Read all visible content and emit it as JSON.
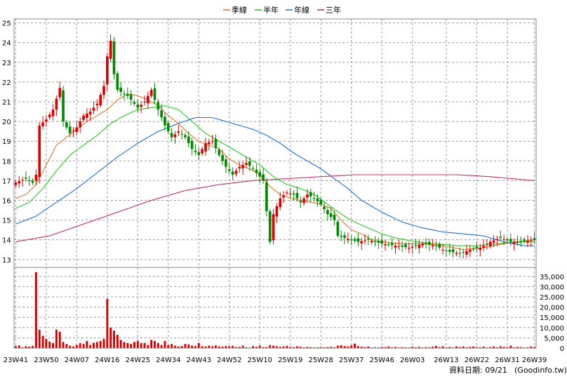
{
  "chart_data": {
    "type": "candlestick_with_volume",
    "title": "",
    "legend": [
      {
        "name": "季線",
        "color": "#e8742a"
      },
      {
        "name": "半年",
        "color": "#22cc22"
      },
      {
        "name": "年線",
        "color": "#1f6fd1"
      },
      {
        "name": "三年",
        "color": "#c0306a"
      }
    ],
    "price_axis": {
      "min": 12.6,
      "max": 25.2,
      "ticks": [
        13,
        14,
        15,
        16,
        17,
        18,
        19,
        20,
        21,
        22,
        23,
        24,
        25
      ]
    },
    "volume_axis": {
      "min": 0,
      "max": 38000,
      "ticks": [
        0,
        5000,
        10000,
        15000,
        20000,
        25000,
        30000,
        35000
      ],
      "tick_labels": [
        "0",
        "5,000",
        "10,000",
        "15,000",
        "20,000",
        "25,000",
        "30,000",
        "35,000"
      ]
    },
    "x_axis": {
      "num_weeks": 154,
      "tick_labels": [
        "23W41",
        "23W50",
        "24W07",
        "24W16",
        "24W25",
        "24W34",
        "24W43",
        "24W52",
        "25W10",
        "25W19",
        "25W28",
        "25W37",
        "25W46",
        "26W03",
        "26W13",
        "26W22",
        "26W31",
        "26W39"
      ],
      "tick_positions": [
        0,
        9,
        18,
        27,
        36,
        45,
        54,
        63,
        72,
        81,
        90,
        99,
        108,
        117,
        127,
        136,
        145,
        153
      ]
    },
    "price_keypoints": [
      [
        0,
        16.9
      ],
      [
        3,
        17.1
      ],
      [
        5,
        16.9
      ],
      [
        6,
        17.3
      ],
      [
        7,
        19.8
      ],
      [
        9,
        20.1
      ],
      [
        11,
        20.6
      ],
      [
        13,
        21.7
      ],
      [
        14,
        20.0
      ],
      [
        16,
        19.4
      ],
      [
        18,
        19.7
      ],
      [
        20,
        20.3
      ],
      [
        22,
        20.5
      ],
      [
        24,
        20.9
      ],
      [
        26,
        21.8
      ],
      [
        27,
        23.3
      ],
      [
        28,
        24.1
      ],
      [
        29,
        22.4
      ],
      [
        30,
        21.6
      ],
      [
        33,
        21.3
      ],
      [
        36,
        20.7
      ],
      [
        38,
        21.0
      ],
      [
        40,
        21.6
      ],
      [
        42,
        20.6
      ],
      [
        44,
        19.8
      ],
      [
        46,
        19.2
      ],
      [
        48,
        19.5
      ],
      [
        50,
        19.2
      ],
      [
        52,
        18.6
      ],
      [
        54,
        18.3
      ],
      [
        56,
        18.9
      ],
      [
        58,
        19.0
      ],
      [
        60,
        18.3
      ],
      [
        62,
        17.7
      ],
      [
        64,
        17.3
      ],
      [
        66,
        17.7
      ],
      [
        68,
        17.9
      ],
      [
        70,
        17.6
      ],
      [
        72,
        17.2
      ],
      [
        73,
        17.0
      ],
      [
        75,
        13.9
      ],
      [
        76,
        15.3
      ],
      [
        78,
        16.1
      ],
      [
        80,
        16.4
      ],
      [
        82,
        16.3
      ],
      [
        84,
        15.9
      ],
      [
        86,
        16.3
      ],
      [
        88,
        16.1
      ],
      [
        90,
        15.8
      ],
      [
        92,
        15.3
      ],
      [
        94,
        15.0
      ],
      [
        95,
        14.2
      ],
      [
        97,
        14.1
      ],
      [
        99,
        14.0
      ],
      [
        101,
        13.9
      ],
      [
        104,
        14.0
      ],
      [
        108,
        13.8
      ],
      [
        112,
        13.7
      ],
      [
        116,
        13.6
      ],
      [
        120,
        13.8
      ],
      [
        124,
        13.7
      ],
      [
        126,
        13.5
      ],
      [
        128,
        13.4
      ],
      [
        131,
        13.3
      ],
      [
        134,
        13.5
      ],
      [
        137,
        13.6
      ],
      [
        140,
        13.9
      ],
      [
        143,
        14.1
      ],
      [
        146,
        13.9
      ],
      [
        149,
        13.9
      ],
      [
        152,
        14.0
      ],
      [
        153,
        14.0
      ]
    ],
    "ma_keypoints": {
      "季線": [
        [
          0,
          16.1
        ],
        [
          3,
          16.3
        ],
        [
          6,
          16.8
        ],
        [
          9,
          17.8
        ],
        [
          12,
          18.8
        ],
        [
          15,
          19.2
        ],
        [
          18,
          19.6
        ],
        [
          21,
          20.0
        ],
        [
          24,
          20.3
        ],
        [
          27,
          20.6
        ],
        [
          30,
          21.1
        ],
        [
          33,
          21.4
        ],
        [
          36,
          21.3
        ],
        [
          39,
          21.1
        ],
        [
          42,
          20.8
        ],
        [
          45,
          20.3
        ],
        [
          48,
          19.9
        ],
        [
          51,
          19.4
        ],
        [
          54,
          19.0
        ],
        [
          57,
          18.8
        ],
        [
          60,
          18.6
        ],
        [
          63,
          18.1
        ],
        [
          66,
          17.8
        ],
        [
          69,
          17.6
        ],
        [
          72,
          17.3
        ],
        [
          75,
          16.7
        ],
        [
          78,
          16.3
        ],
        [
          81,
          16.1
        ],
        [
          84,
          16.0
        ],
        [
          87,
          15.9
        ],
        [
          90,
          15.8
        ],
        [
          93,
          15.6
        ],
        [
          96,
          15.0
        ],
        [
          99,
          14.5
        ],
        [
          102,
          14.3
        ],
        [
          105,
          14.0
        ],
        [
          108,
          13.9
        ],
        [
          114,
          13.8
        ],
        [
          120,
          13.8
        ],
        [
          126,
          13.7
        ],
        [
          132,
          13.5
        ],
        [
          138,
          13.6
        ],
        [
          144,
          13.8
        ],
        [
          150,
          13.9
        ],
        [
          153,
          14.0
        ]
      ],
      "半年": [
        [
          0,
          15.6
        ],
        [
          4,
          15.9
        ],
        [
          8,
          16.6
        ],
        [
          12,
          17.5
        ],
        [
          16,
          18.3
        ],
        [
          20,
          18.8
        ],
        [
          24,
          19.3
        ],
        [
          28,
          19.9
        ],
        [
          32,
          20.3
        ],
        [
          36,
          20.6
        ],
        [
          40,
          20.7
        ],
        [
          44,
          20.8
        ],
        [
          48,
          20.6
        ],
        [
          52,
          20.0
        ],
        [
          56,
          19.4
        ],
        [
          60,
          19.0
        ],
        [
          64,
          18.6
        ],
        [
          68,
          18.2
        ],
        [
          72,
          17.8
        ],
        [
          76,
          17.2
        ],
        [
          80,
          16.8
        ],
        [
          84,
          16.6
        ],
        [
          88,
          16.3
        ],
        [
          92,
          15.8
        ],
        [
          96,
          15.3
        ],
        [
          100,
          14.9
        ],
        [
          104,
          14.6
        ],
        [
          108,
          14.3
        ],
        [
          112,
          14.1
        ],
        [
          118,
          13.9
        ],
        [
          124,
          13.8
        ],
        [
          130,
          13.7
        ],
        [
          136,
          13.7
        ],
        [
          142,
          13.8
        ],
        [
          148,
          13.9
        ],
        [
          153,
          13.9
        ]
      ],
      "年線": [
        [
          0,
          14.8
        ],
        [
          6,
          15.2
        ],
        [
          12,
          15.9
        ],
        [
          18,
          16.6
        ],
        [
          24,
          17.4
        ],
        [
          30,
          18.2
        ],
        [
          36,
          18.9
        ],
        [
          42,
          19.5
        ],
        [
          48,
          19.9
        ],
        [
          53,
          20.2
        ],
        [
          58,
          20.2
        ],
        [
          64,
          19.9
        ],
        [
          70,
          19.6
        ],
        [
          74,
          19.3
        ],
        [
          78,
          18.9
        ],
        [
          82,
          18.4
        ],
        [
          86,
          18.0
        ],
        [
          90,
          17.6
        ],
        [
          94,
          17.1
        ],
        [
          98,
          16.6
        ],
        [
          102,
          16.0
        ],
        [
          108,
          15.4
        ],
        [
          114,
          14.9
        ],
        [
          120,
          14.6
        ],
        [
          126,
          14.4
        ],
        [
          132,
          14.3
        ],
        [
          138,
          14.2
        ],
        [
          144,
          13.9
        ],
        [
          150,
          13.7
        ],
        [
          153,
          13.7
        ]
      ],
      "三年": [
        [
          0,
          13.9
        ],
        [
          10,
          14.2
        ],
        [
          20,
          14.8
        ],
        [
          30,
          15.4
        ],
        [
          40,
          16.0
        ],
        [
          50,
          16.5
        ],
        [
          60,
          16.8
        ],
        [
          70,
          17.0
        ],
        [
          80,
          17.1
        ],
        [
          90,
          17.2
        ],
        [
          100,
          17.3
        ],
        [
          110,
          17.3
        ],
        [
          120,
          17.3
        ],
        [
          130,
          17.3
        ],
        [
          140,
          17.2
        ],
        [
          153,
          17.0
        ]
      ]
    },
    "volume_spikes": [
      [
        0,
        1000
      ],
      [
        1,
        1300
      ],
      [
        2,
        400
      ],
      [
        3,
        900
      ],
      [
        4,
        700
      ],
      [
        5,
        1100
      ],
      [
        6,
        37000
      ],
      [
        7,
        9000
      ],
      [
        8,
        6000
      ],
      [
        9,
        4500
      ],
      [
        10,
        3200
      ],
      [
        11,
        2500
      ],
      [
        12,
        9000
      ],
      [
        13,
        8000
      ],
      [
        14,
        3000
      ],
      [
        15,
        2000
      ],
      [
        16,
        1200
      ],
      [
        17,
        800
      ],
      [
        18,
        1500
      ],
      [
        19,
        2500
      ],
      [
        20,
        2000
      ],
      [
        21,
        3500
      ],
      [
        22,
        1500
      ],
      [
        23,
        2600
      ],
      [
        24,
        3000
      ],
      [
        25,
        3500
      ],
      [
        26,
        4500
      ],
      [
        27,
        24000
      ],
      [
        28,
        10000
      ],
      [
        29,
        8500
      ],
      [
        30,
        6500
      ],
      [
        31,
        4000
      ],
      [
        32,
        3000
      ],
      [
        33,
        2500
      ],
      [
        34,
        2000
      ],
      [
        35,
        3000
      ],
      [
        36,
        3500
      ],
      [
        37,
        2500
      ],
      [
        38,
        2500
      ],
      [
        39,
        1500
      ],
      [
        40,
        4000
      ],
      [
        41,
        3500
      ],
      [
        42,
        2500
      ],
      [
        43,
        1500
      ],
      [
        44,
        3500
      ],
      [
        45,
        1500
      ],
      [
        46,
        2000
      ],
      [
        47,
        1200
      ],
      [
        48,
        800
      ],
      [
        49,
        1000
      ],
      [
        50,
        2000
      ],
      [
        51,
        1800
      ],
      [
        52,
        1200
      ],
      [
        53,
        1000
      ],
      [
        54,
        2500
      ],
      [
        55,
        900
      ],
      [
        56,
        800
      ],
      [
        57,
        1200
      ],
      [
        58,
        900
      ],
      [
        59,
        1300
      ],
      [
        60,
        800
      ],
      [
        61,
        700
      ],
      [
        62,
        1000
      ],
      [
        63,
        900
      ],
      [
        64,
        1100
      ],
      [
        65,
        500
      ],
      [
        66,
        600
      ],
      [
        67,
        1200
      ],
      [
        68,
        400
      ],
      [
        69,
        300
      ],
      [
        70,
        1000
      ],
      [
        71,
        600
      ],
      [
        72,
        1200
      ],
      [
        73,
        500
      ],
      [
        74,
        500
      ],
      [
        75,
        1400
      ],
      [
        76,
        1200
      ],
      [
        77,
        900
      ],
      [
        78,
        600
      ],
      [
        79,
        800
      ],
      [
        80,
        1100
      ],
      [
        81,
        600
      ],
      [
        82,
        500
      ],
      [
        83,
        900
      ],
      [
        84,
        700
      ],
      [
        85,
        400
      ],
      [
        86,
        600
      ],
      [
        87,
        500
      ],
      [
        88,
        300
      ],
      [
        89,
        400
      ],
      [
        90,
        500
      ],
      [
        91,
        400
      ],
      [
        92,
        500
      ],
      [
        93,
        600
      ],
      [
        94,
        400
      ],
      [
        95,
        1200
      ],
      [
        96,
        1400
      ],
      [
        97,
        1000
      ],
      [
        98,
        800
      ],
      [
        99,
        1300
      ],
      [
        100,
        2200
      ],
      [
        101,
        1000
      ],
      [
        102,
        700
      ],
      [
        103,
        500
      ],
      [
        104,
        800
      ],
      [
        105,
        300
      ],
      [
        106,
        400
      ],
      [
        107,
        300
      ],
      [
        108,
        600
      ],
      [
        109,
        500
      ],
      [
        110,
        800
      ],
      [
        111,
        400
      ],
      [
        112,
        600
      ],
      [
        113,
        300
      ],
      [
        114,
        500
      ],
      [
        115,
        400
      ],
      [
        116,
        300
      ],
      [
        117,
        700
      ],
      [
        118,
        400
      ],
      [
        119,
        600
      ],
      [
        120,
        300
      ],
      [
        121,
        500
      ],
      [
        122,
        400
      ],
      [
        123,
        700
      ],
      [
        124,
        1100
      ],
      [
        125,
        500
      ],
      [
        126,
        900
      ],
      [
        127,
        400
      ],
      [
        128,
        600
      ],
      [
        129,
        300
      ],
      [
        130,
        900
      ],
      [
        131,
        500
      ],
      [
        132,
        800
      ],
      [
        133,
        400
      ],
      [
        134,
        600
      ],
      [
        135,
        800
      ],
      [
        136,
        500
      ],
      [
        137,
        400
      ],
      [
        138,
        700
      ],
      [
        139,
        300
      ],
      [
        140,
        500
      ],
      [
        141,
        800
      ],
      [
        142,
        400
      ],
      [
        143,
        900
      ],
      [
        144,
        600
      ],
      [
        145,
        500
      ],
      [
        146,
        1200
      ],
      [
        147,
        400
      ],
      [
        148,
        600
      ],
      [
        149,
        500
      ],
      [
        150,
        300
      ],
      [
        151,
        400
      ],
      [
        152,
        800
      ],
      [
        153,
        600
      ]
    ]
  },
  "footer": {
    "date_label": "資料日期: 09/21",
    "source": "(Goodinfo.tw)"
  }
}
